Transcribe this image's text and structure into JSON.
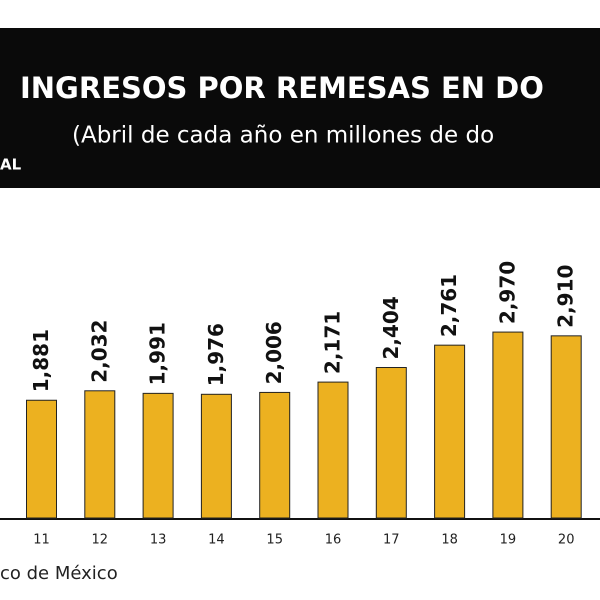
{
  "chart_data": {
    "type": "bar",
    "title": "INGRESOS POR REMESAS EN DO",
    "subtitle": "(Abril de cada año en millones de do",
    "logo": "AL",
    "source": "co de México",
    "categories": [
      "11",
      "12",
      "13",
      "14",
      "15",
      "16",
      "17",
      "18",
      "19",
      "20"
    ],
    "values": [
      1881,
      2032,
      1991,
      1976,
      2006,
      2171,
      2404,
      2761,
      2970,
      2910
    ],
    "value_labels": [
      "1,881",
      "2,032",
      "1,991",
      "1,976",
      "2,006",
      "2,171",
      "2,404",
      "2,761",
      "2,970",
      "2,910"
    ],
    "color": "#ecb120"
  }
}
